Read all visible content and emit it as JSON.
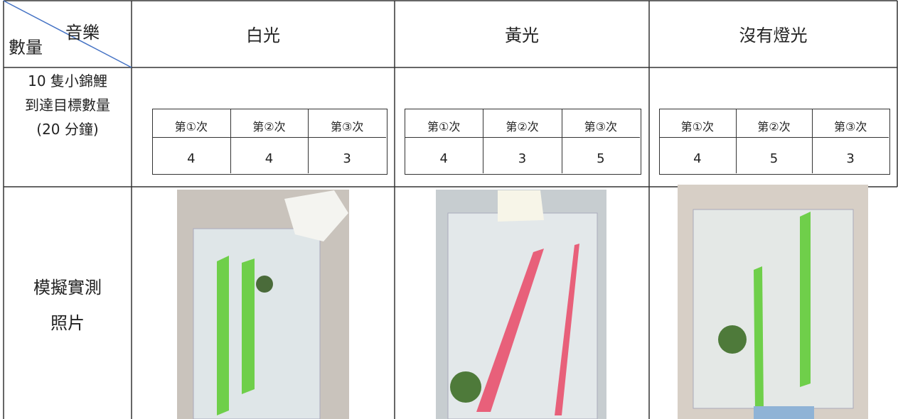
{
  "header": {
    "corner_top": "音樂",
    "corner_bottom": "數量",
    "columns": [
      "白光",
      "黃光",
      "沒有燈光"
    ]
  },
  "rows": [
    {
      "label": [
        "10 隻小錦鯉",
        "到達目標數量",
        "(20 分鐘)"
      ],
      "groups": [
        {
          "trials": [
            "第①次",
            "第②次",
            "第③次"
          ],
          "counts": [
            4,
            4,
            3
          ]
        },
        {
          "trials": [
            "第①次",
            "第②次",
            "第③次"
          ],
          "counts": [
            4,
            3,
            5
          ]
        },
        {
          "trials": [
            "第①次",
            "第②次",
            "第③次"
          ],
          "counts": [
            4,
            5,
            3
          ]
        }
      ]
    },
    {
      "label": [
        "模擬實測",
        "照片"
      ]
    }
  ]
}
